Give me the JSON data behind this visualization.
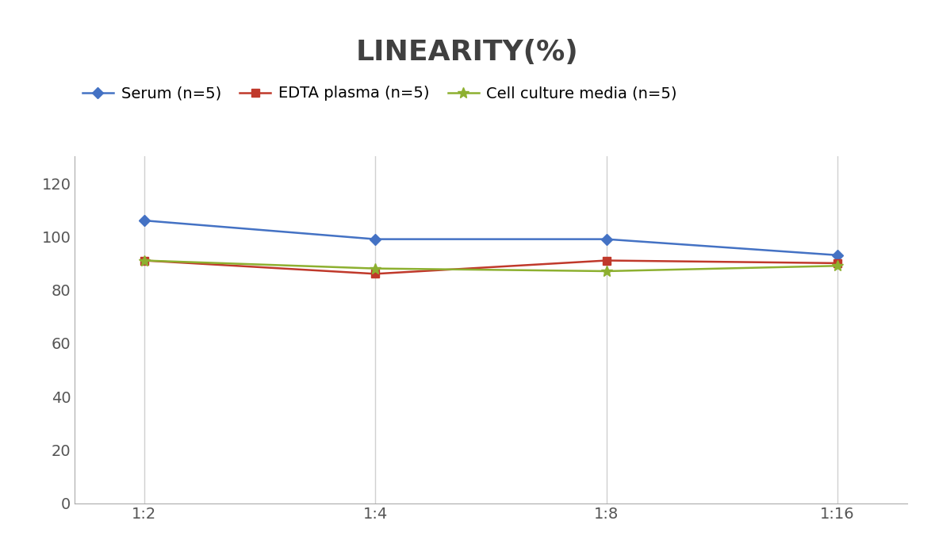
{
  "title": "LINEARITY(%)",
  "x_labels": [
    "1:2",
    "1:4",
    "1:8",
    "1:16"
  ],
  "series": [
    {
      "label": "Serum (n=5)",
      "values": [
        106,
        99,
        99,
        93
      ],
      "color": "#4472C4",
      "marker": "D",
      "markersize": 7
    },
    {
      "label": "EDTA plasma (n=5)",
      "values": [
        91,
        86,
        91,
        90
      ],
      "color": "#C0392B",
      "marker": "s",
      "markersize": 7
    },
    {
      "label": "Cell culture media (n=5)",
      "values": [
        91,
        88,
        87,
        89
      ],
      "color": "#8DB030",
      "marker": "*",
      "markersize": 10
    }
  ],
  "ylim": [
    0,
    130
  ],
  "yticks": [
    0,
    20,
    40,
    60,
    80,
    100,
    120
  ],
  "title_fontsize": 26,
  "legend_fontsize": 14,
  "tick_fontsize": 14,
  "background_color": "#ffffff",
  "grid_color": "#d0d0d0",
  "title_fontweight": "bold",
  "title_color": "#404040"
}
